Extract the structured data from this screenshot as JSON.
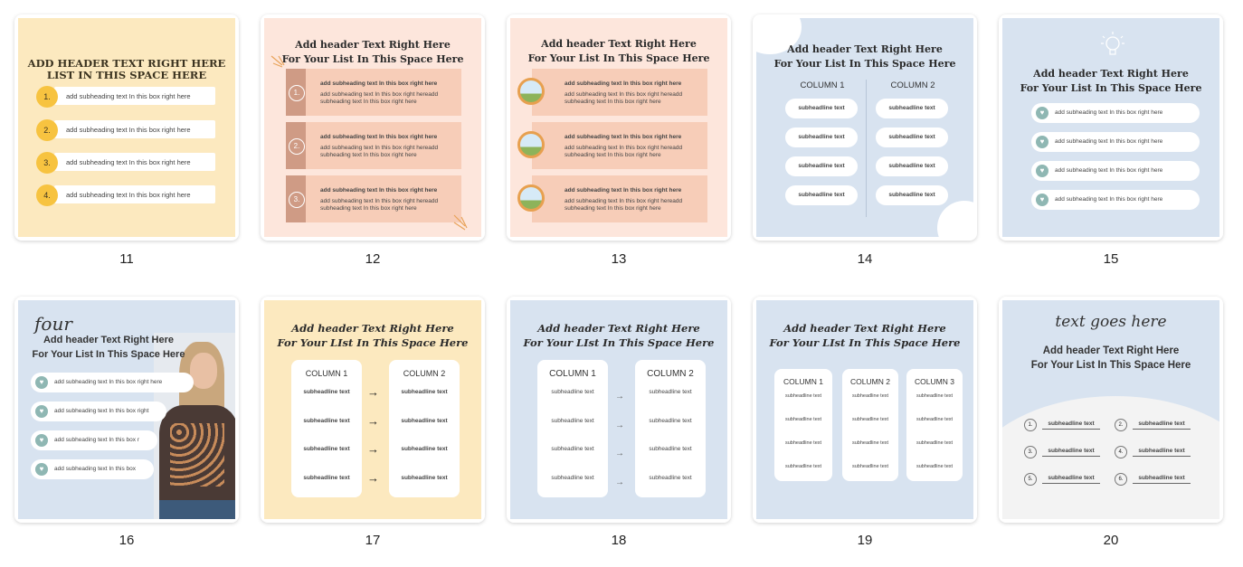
{
  "templates": [
    {
      "n": "11",
      "bg": "#fce9bf",
      "header": [
        "ADD HEADER TEXT RIGHT HERE",
        "LIST IN THIS SPACE HERE"
      ],
      "badges": [
        "1.",
        "2.",
        "3.",
        "4."
      ],
      "items": [
        "add subheading text In this box right here",
        "add subheading text In this box right here",
        "add subheading text In this box right here",
        "add subheading text In this box right here"
      ]
    },
    {
      "n": "12",
      "bg": "#fde6dc",
      "header": [
        "Add header Text Right Here",
        "For Your List In This Space Here"
      ],
      "boxes": [
        {
          "num": "1.",
          "title": "add subheading text In this box right here",
          "line1": "add subheading text In this box right hereadd",
          "line2": "subheading text In this box right here"
        },
        {
          "num": "2.",
          "title": "add subheading text In this box right here",
          "line1": "add subheading text In this box right hereadd",
          "line2": "subheading text In this box right here"
        },
        {
          "num": "3.",
          "title": "add subheading text In this box right here",
          "line1": "add subheading text In this box right hereadd",
          "line2": "subheading text In this box right here"
        }
      ]
    },
    {
      "n": "13",
      "bg": "#fde6dc",
      "header": [
        "Add header Text Right Here",
        "For Your List In This Space Here"
      ],
      "boxes": [
        {
          "title": "add subheading text In this box right here",
          "line1": "add subheading text In this box right hereadd",
          "line2": "subheading text In this box right here"
        },
        {
          "title": "add subheading text In this box right here",
          "line1": "add subheading text In this box right hereadd",
          "line2": "subheading text In this box right here"
        },
        {
          "title": "add subheading text In this box right here",
          "line1": "add subheading text In this box right hereadd",
          "line2": "subheading text In this box right here"
        }
      ]
    },
    {
      "n": "14",
      "bg": "#d8e3f0",
      "header": [
        "Add header Text Right Here",
        "For Your List In This Space Here"
      ],
      "columns": [
        "COLUMN 1",
        "COLUMN 2"
      ],
      "items": [
        "subheadline text",
        "subheadline text",
        "subheadline text",
        "subheadline text"
      ]
    },
    {
      "n": "15",
      "bg": "#d8e3f0",
      "header": [
        "Add header Text Right Here",
        "For Your List In This Space Here"
      ],
      "items": [
        "add subheading text In this box right here",
        "add subheading text In this box right here",
        "add subheading text In this box right here",
        "add subheading text In this box right here"
      ]
    },
    {
      "n": "16",
      "bg": "#d8e3f0",
      "script": "four",
      "header": [
        "Add header Text Right Here",
        "For Your List In This Space Here"
      ],
      "items": [
        "add subheading text In this box right here",
        "add subheading text In this box right",
        "add subheading text In this box r",
        "add subheading text In this box"
      ]
    },
    {
      "n": "17",
      "bg": "#fce9bf",
      "header": [
        "Add header Text Right Here",
        "For Your LIst In This Space Here"
      ],
      "columns": [
        "COLUMN 1",
        "COLUMN 2"
      ],
      "items": [
        "subheadline text",
        "subheadline text",
        "subheadline text",
        "subheadline text"
      ]
    },
    {
      "n": "18",
      "bg": "#d8e3f0",
      "header": [
        "Add header Text Right Here",
        "For Your LIst In This Space Here"
      ],
      "columns": [
        "COLUMN 1",
        "COLUMN 2"
      ],
      "items": [
        "subheadline text",
        "subheadline text",
        "subheadline text",
        "subheadline text"
      ]
    },
    {
      "n": "19",
      "bg": "#d8e3f0",
      "header": [
        "Add header Text Right Here",
        "For Your LIst In This Space Here"
      ],
      "columns": [
        "COLUMN 1",
        "COLUMN 2",
        "COLUMN 3"
      ],
      "items": [
        "subheadline text",
        "subheadline text",
        "subheadline text",
        "subheadline text"
      ]
    },
    {
      "n": "20",
      "bg": "#d8e3f0",
      "script": "text goes here",
      "header": [
        "Add header Text Right Here",
        "For Your List In This Space Here"
      ],
      "badges": [
        "1.",
        "2.",
        "3.",
        "4.",
        "5.",
        "6."
      ],
      "items": [
        "subheadline text",
        "subheadline text",
        "subheadline text",
        "subheadline text",
        "subheadline text",
        "subheadline text"
      ]
    }
  ]
}
